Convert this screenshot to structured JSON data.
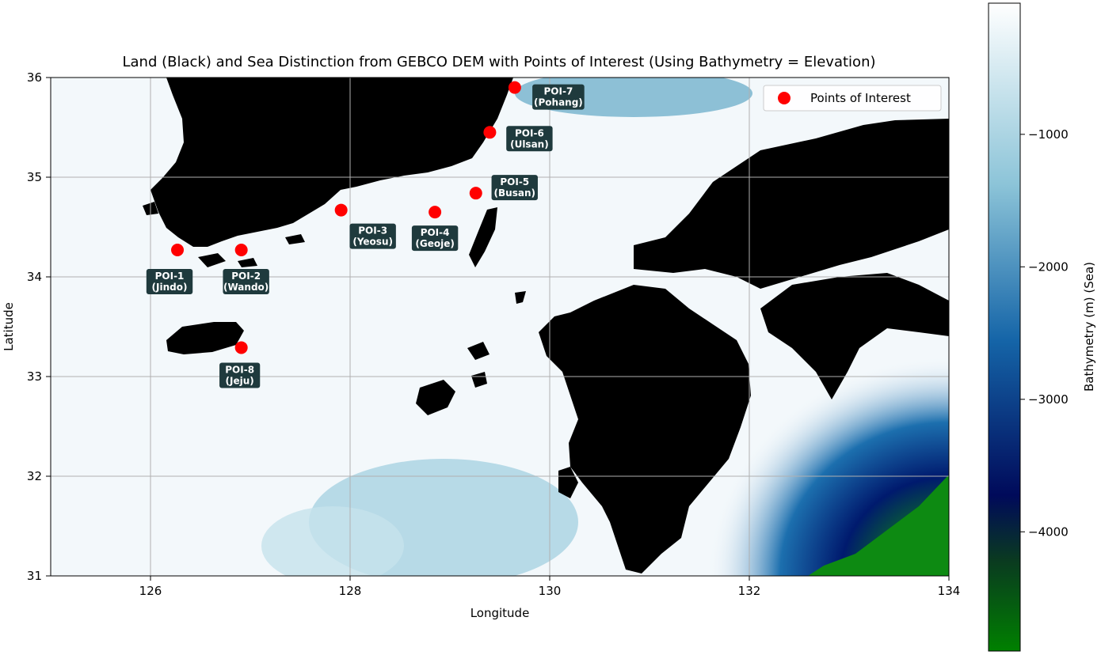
{
  "chart_data": {
    "type": "scatter",
    "title": "Land (Black) and Sea Distinction from GEBCO DEM with Points of Interest (Using Bathymetry = Elevation)",
    "xlabel": "Longitude",
    "ylabel": "Latitude",
    "xlim": [
      125,
      134
    ],
    "ylim": [
      31,
      36
    ],
    "xticks": [
      "126",
      "128",
      "130",
      "132",
      "134"
    ],
    "yticks": [
      "31",
      "32",
      "33",
      "34",
      "35",
      "36"
    ],
    "grid": true,
    "legend": {
      "placement": "top-right",
      "label": "Points of Interest"
    },
    "colors": {
      "land": "#000000",
      "poi": "#ff0000",
      "label_box": "#1f3a3d",
      "deep_sea": "#0b7a0b"
    },
    "series": [
      {
        "name": "Points of Interest",
        "points": [
          {
            "id": "POI-1",
            "place": "(Jindo)",
            "lon": 126.27,
            "lat": 34.27
          },
          {
            "id": "POI-2",
            "place": "(Wando)",
            "lon": 126.91,
            "lat": 34.27
          },
          {
            "id": "POI-3",
            "place": "(Yeosu)",
            "lon": 127.91,
            "lat": 34.67
          },
          {
            "id": "POI-4",
            "place": "(Geoje)",
            "lon": 128.85,
            "lat": 34.65
          },
          {
            "id": "POI-5",
            "place": "(Busan)",
            "lon": 129.26,
            "lat": 34.84
          },
          {
            "id": "POI-6",
            "place": "(Ulsan)",
            "lon": 129.4,
            "lat": 35.45
          },
          {
            "id": "POI-7",
            "place": "(Pohang)",
            "lon": 129.65,
            "lat": 35.9
          },
          {
            "id": "POI-8",
            "place": "(Jeju)",
            "lon": 126.91,
            "lat": 33.29
          }
        ]
      }
    ],
    "colorbar": {
      "label": "Bathymetry (m) (Sea)",
      "range": [
        -4900,
        -10
      ],
      "ticks": [
        "−1000",
        "−2000",
        "−3000",
        "−4000"
      ],
      "tick_values": [
        -1000,
        -2000,
        -3000,
        -4000
      ],
      "colors": [
        "#008000",
        "#000a5a",
        "#1565a8",
        "#8cc4d8",
        "#ffffff"
      ]
    }
  }
}
